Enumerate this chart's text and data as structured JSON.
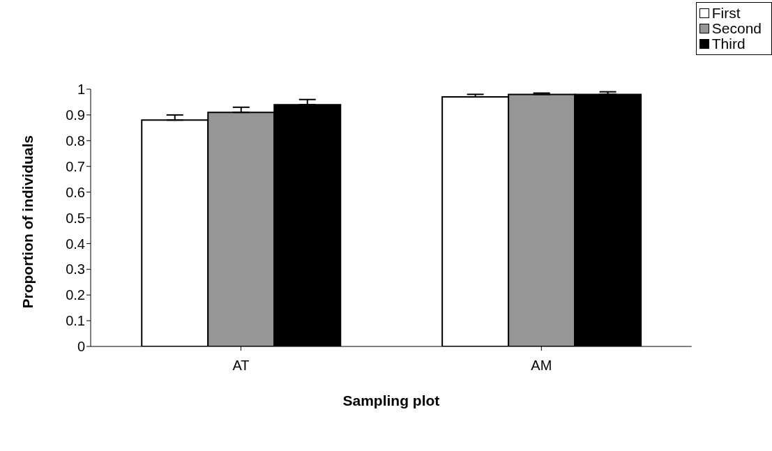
{
  "chart_data": {
    "type": "bar",
    "xlabel": "Sampling plot",
    "ylabel": "Proportion of individuals",
    "categories": [
      "AT",
      "AM"
    ],
    "series": [
      {
        "name": "First",
        "color": "#ffffff",
        "values": [
          0.88,
          0.97
        ],
        "errors": [
          0.02,
          0.01
        ]
      },
      {
        "name": "Second",
        "color": "#969696",
        "values": [
          0.91,
          0.98
        ],
        "errors": [
          0.02,
          0.005
        ]
      },
      {
        "name": "Third",
        "color": "#000000",
        "values": [
          0.94,
          0.98
        ],
        "errors": [
          0.02,
          0.01
        ]
      }
    ],
    "ylim": [
      0,
      1
    ],
    "yticks": [
      0,
      0.1,
      0.2,
      0.3,
      0.4,
      0.5,
      0.6,
      0.7,
      0.8,
      0.9,
      1
    ],
    "grid": false,
    "legend": "top right"
  }
}
